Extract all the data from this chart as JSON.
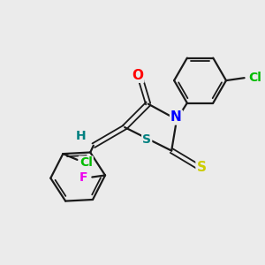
{
  "background_color": "#ebebeb",
  "bond_color": "#1a1a1a",
  "atom_colors": {
    "O": "#ff0000",
    "N": "#0000ff",
    "S_thio": "#cccc00",
    "S_ring": "#008080",
    "Cl": "#00bb00",
    "F": "#ee00ee",
    "H": "#008080"
  },
  "figsize": [
    3.0,
    3.0
  ],
  "dpi": 100
}
